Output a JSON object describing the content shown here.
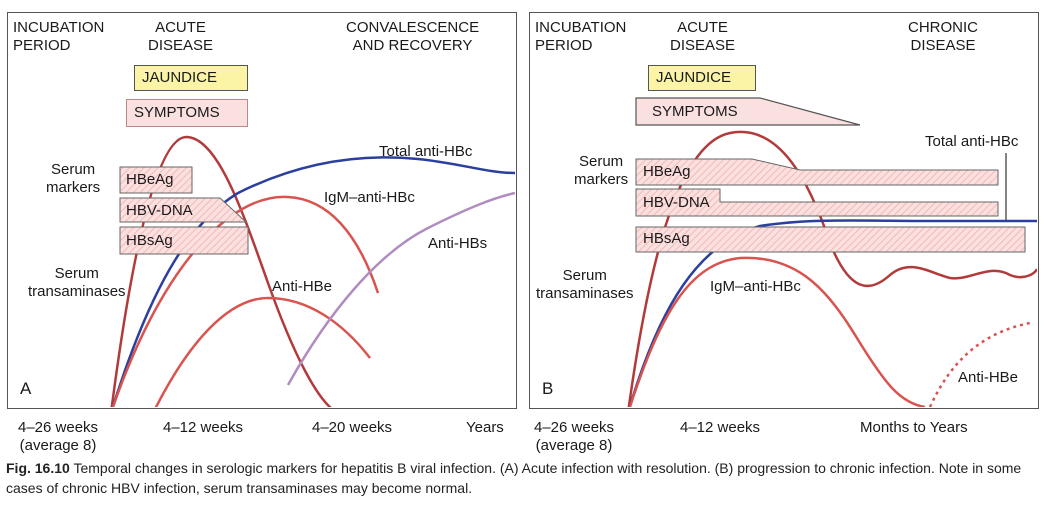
{
  "panel_a": {
    "letter": "A",
    "phases": [
      "INCUBATION\nPERIOD",
      "ACUTE\nDISEASE",
      "CONVALESCENCE\nAND RECOVERY"
    ],
    "jaundice": "JAUNDICE",
    "symptoms": "SYMPTOMS",
    "serum_markers": "Serum\nmarkers",
    "serum_transaminases": "Serum\ntransaminases",
    "markers": [
      "HBeAg",
      "HBV-DNA",
      "HBsAg"
    ],
    "curves": [
      "Total anti-HBc",
      "IgM–anti-HBc",
      "Anti-HBs",
      "Anti-HBe"
    ],
    "timeline": [
      "4–26 weeks\n(average 8)",
      "4–12 weeks",
      "4–20 weeks",
      "Years"
    ]
  },
  "panel_b": {
    "letter": "B",
    "phases": [
      "INCUBATION\nPERIOD",
      "ACUTE\nDISEASE",
      "CHRONIC\nDISEASE"
    ],
    "jaundice": "JAUNDICE",
    "symptoms": "SYMPTOMS",
    "serum_markers": "Serum\nmarkers",
    "serum_transaminases": "Serum\ntransaminases",
    "markers": [
      "HBeAg",
      "HBV-DNA",
      "HBsAg"
    ],
    "curves": [
      "Total anti-HBc",
      "IgM–anti-HBc",
      "Anti-HBe"
    ],
    "timeline": [
      "4–26 weeks\n(average 8)",
      "4–12 weeks",
      "Months to Years"
    ]
  },
  "caption": {
    "label": "Fig. 16.10",
    "text": "Temporal changes in serologic markers for hepatitis B viral infection. (A) Acute infection with resolution. (B) progression to chronic infection. Note in some cases of chronic HBV infection, serum transaminases may become normal."
  },
  "colors": {
    "red_curve": "#d9534f",
    "dark_red_curve": "#b23a3a",
    "blue_curve": "#2b3f9e",
    "purple_curve": "#b08cc0",
    "marker_fill": "#fbe0e0",
    "jaundice_fill": "#fbf4a6"
  }
}
